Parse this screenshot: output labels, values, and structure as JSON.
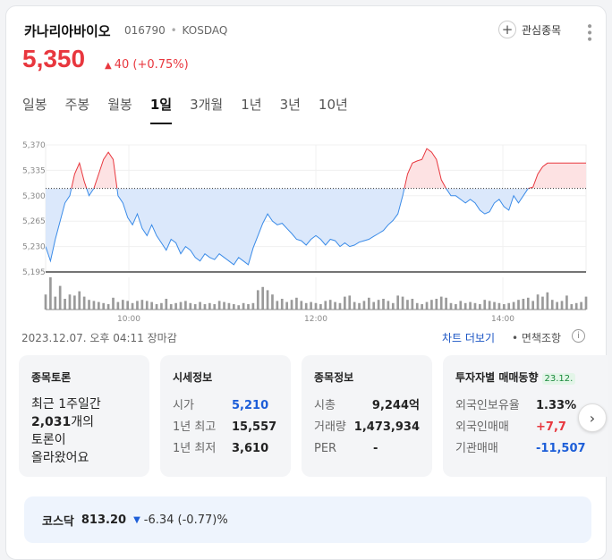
{
  "header": {
    "stock_name": "카나리아바이오",
    "stock_code": "016790",
    "market": "KOSDAQ",
    "separator": "•",
    "fav_label": "관심종목"
  },
  "quote": {
    "price": "5,350",
    "change": "40 (+0.75%)",
    "direction": "up"
  },
  "tabs": [
    {
      "label": "일봉",
      "active": false
    },
    {
      "label": "주봉",
      "active": false
    },
    {
      "label": "월봉",
      "active": false
    },
    {
      "label": "1일",
      "active": true
    },
    {
      "label": "3개월",
      "active": false
    },
    {
      "label": "1년",
      "active": false
    },
    {
      "label": "3년",
      "active": false
    },
    {
      "label": "10년",
      "active": false
    }
  ],
  "chart_data": {
    "type": "area",
    "baseline": 5310,
    "ylim": [
      5195,
      5370
    ],
    "y_ticks": [
      "5,370",
      "5,335",
      "5,300",
      "5,265",
      "5,230",
      "5,195"
    ],
    "x_ticks": [
      "10:00",
      "12:00",
      "14:00"
    ],
    "colors": {
      "up": "#e8373e",
      "down": "#3a8be8",
      "up_fill": "#fde2e3",
      "down_fill": "#dbe8fb"
    },
    "price": [
      5230,
      5210,
      5240,
      5265,
      5290,
      5300,
      5330,
      5345,
      5320,
      5300,
      5310,
      5330,
      5350,
      5360,
      5350,
      5300,
      5290,
      5270,
      5260,
      5275,
      5255,
      5245,
      5260,
      5245,
      5235,
      5225,
      5240,
      5235,
      5220,
      5230,
      5225,
      5215,
      5210,
      5220,
      5215,
      5212,
      5220,
      5215,
      5210,
      5205,
      5215,
      5210,
      5205,
      5228,
      5245,
      5262,
      5275,
      5265,
      5260,
      5262,
      5255,
      5248,
      5240,
      5238,
      5232,
      5240,
      5245,
      5240,
      5232,
      5240,
      5238,
      5230,
      5235,
      5230,
      5232,
      5236,
      5238,
      5240,
      5244,
      5248,
      5252,
      5260,
      5266,
      5275,
      5300,
      5330,
      5345,
      5348,
      5350,
      5365,
      5360,
      5350,
      5322,
      5310,
      5300,
      5300,
      5295,
      5290,
      5295,
      5290,
      5280,
      5275,
      5278,
      5290,
      5295,
      5285,
      5280,
      5300,
      5290,
      5300,
      5310,
      5312,
      5330,
      5340,
      5345,
      5345,
      5345,
      5345,
      5345,
      5345,
      5345,
      5345,
      5345
    ],
    "volume": [
      14,
      30,
      12,
      22,
      10,
      14,
      13,
      17,
      12,
      9,
      8,
      7,
      6,
      5,
      11,
      7,
      9,
      8,
      6,
      8,
      9,
      8,
      7,
      5,
      6,
      10,
      5,
      6,
      7,
      8,
      6,
      5,
      7,
      5,
      6,
      5,
      8,
      7,
      6,
      5,
      4,
      6,
      5,
      6,
      18,
      21,
      18,
      14,
      8,
      10,
      7,
      9,
      11,
      8,
      6,
      7,
      6,
      5,
      8,
      9,
      7,
      6,
      12,
      13,
      7,
      6,
      8,
      11,
      7,
      9,
      10,
      8,
      6,
      13,
      12,
      9,
      10,
      6,
      5,
      7,
      9,
      10,
      12,
      11,
      6,
      5,
      8,
      6,
      7,
      6,
      5,
      9,
      8,
      7,
      6,
      5,
      6,
      7,
      9,
      10,
      11,
      8,
      14,
      12,
      16,
      9,
      7,
      8,
      13,
      5,
      6,
      7,
      12
    ],
    "series": [
      {
        "values": []
      }
    ]
  },
  "footer": {
    "timestamp": "2023.12.07. 오후 04:11 장마감",
    "chart_link": "차트 더보기",
    "dot": "•",
    "disclaimer": "면책조항",
    "info_icon": "i"
  },
  "boxes": {
    "discussion": {
      "title": "종목토론",
      "line1": "최근 1주일간",
      "count": "2,031",
      "count_suffix": "개의",
      "line3": "토론이",
      "line4": "올라왔어요"
    },
    "market_info": {
      "title": "시세정보",
      "rows": [
        {
          "k": "시가",
          "v": "5,210"
        },
        {
          "k": "1년 최고",
          "v": "15,557"
        },
        {
          "k": "1년 최저",
          "v": "3,610"
        }
      ]
    },
    "stock_info": {
      "title": "종목정보",
      "rows": [
        {
          "k": "시총",
          "v": "9,244억"
        },
        {
          "k": "거래량",
          "v": "1,473,934"
        },
        {
          "k": "PER",
          "v": "-"
        }
      ]
    },
    "investors": {
      "title": "투자자별 매매동향",
      "tag": "23.12.",
      "rows": [
        {
          "k": "외국인보유율",
          "v": "1.33%"
        },
        {
          "k": "외국인매매",
          "v": "+7,7"
        },
        {
          "k": "기관매매",
          "v": "-11,507"
        }
      ]
    }
  },
  "index_bar": {
    "name": "코스닥",
    "value": "813.20",
    "change": "-6.34 (-0.77)%"
  }
}
